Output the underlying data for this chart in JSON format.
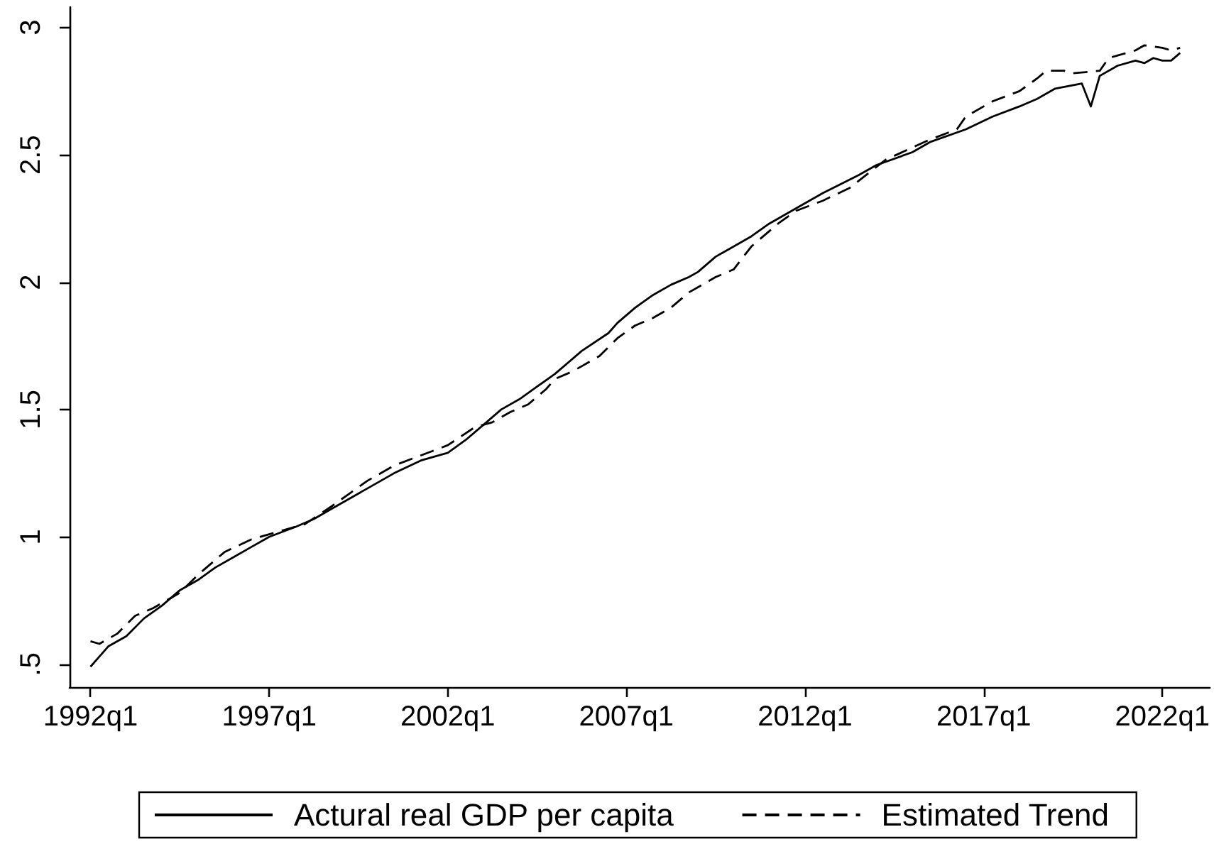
{
  "chart_data": {
    "type": "line",
    "legend": "bottom",
    "grid": false,
    "marker": "none",
    "xlim": [
      "1991-06",
      "2023-05"
    ],
    "xticks": [
      {
        "value": "1992-01",
        "label": "1992q1"
      },
      {
        "value": "1997-01",
        "label": "1997q1"
      },
      {
        "value": "2002-01",
        "label": "2002q1"
      },
      {
        "value": "2007-01",
        "label": "2007q1"
      },
      {
        "value": "2012-01",
        "label": "2012q1"
      },
      {
        "value": "2017-01",
        "label": "2017q1"
      },
      {
        "value": "2022-01",
        "label": "2022q1"
      }
    ],
    "ylim": [
      0.41,
      3.08
    ],
    "yticks": [
      {
        "value": 0.5,
        "label": ".5"
      },
      1,
      1.5,
      2,
      2.5,
      3
    ],
    "series": [
      {
        "name": "Actural real GDP per capita",
        "color": "#000000",
        "line_style": "solid",
        "x": [
          "1992-01",
          "1992-04",
          "1992-07",
          "1993-01",
          "1993-07",
          "1994-01",
          "1994-07",
          "1995-01",
          "1995-07",
          "1996-01",
          "1996-07",
          "1997-01",
          "1997-10",
          "1998-04",
          "1998-10",
          "1999-04",
          "1999-10",
          "2000-07",
          "2001-04",
          "2002-01",
          "2002-07",
          "2003-01",
          "2003-07",
          "2004-01",
          "2004-07",
          "2005-01",
          "2005-10",
          "2006-07",
          "2006-10",
          "2007-04",
          "2007-10",
          "2008-04",
          "2008-10",
          "2009-01",
          "2009-07",
          "2010-01",
          "2010-07",
          "2011-01",
          "2011-10",
          "2012-07",
          "2013-07",
          "2014-01",
          "2015-01",
          "2015-07",
          "2016-07",
          "2017-04",
          "2018-01",
          "2018-07",
          "2019-01",
          "2019-10",
          "2020-01",
          "2020-04",
          "2020-10",
          "2021-04",
          "2021-07",
          "2021-10",
          "2022-01",
          "2022-04",
          "2022-07"
        ],
        "values": [
          0.49,
          0.53,
          0.57,
          0.61,
          0.68,
          0.73,
          0.79,
          0.83,
          0.88,
          0.92,
          0.96,
          1.0,
          1.04,
          1.07,
          1.11,
          1.15,
          1.19,
          1.25,
          1.3,
          1.33,
          1.38,
          1.44,
          1.5,
          1.54,
          1.59,
          1.64,
          1.73,
          1.8,
          1.84,
          1.9,
          1.95,
          1.99,
          2.02,
          2.04,
          2.1,
          2.14,
          2.18,
          2.23,
          2.29,
          2.35,
          2.42,
          2.46,
          2.51,
          2.55,
          2.6,
          2.65,
          2.69,
          2.72,
          2.76,
          2.78,
          2.69,
          2.81,
          2.85,
          2.87,
          2.86,
          2.88,
          2.87,
          2.87,
          2.9
        ]
      },
      {
        "name": "Estimated Trend",
        "color": "#000000",
        "line_style": "dashed",
        "x": [
          "1992-01",
          "1992-04",
          "1992-10",
          "1993-04",
          "1993-10",
          "1994-04",
          "1994-07",
          "1995-01",
          "1995-10",
          "1996-07",
          "1997-04",
          "1998-01",
          "1998-10",
          "1999-04",
          "1999-10",
          "2000-07",
          "2001-04",
          "2002-01",
          "2002-10",
          "2003-04",
          "2003-10",
          "2004-04",
          "2004-10",
          "2005-01",
          "2005-07",
          "2006-04",
          "2006-10",
          "2007-04",
          "2007-10",
          "2008-04",
          "2008-10",
          "2009-07",
          "2010-01",
          "2010-07",
          "2011-04",
          "2011-10",
          "2012-07",
          "2013-04",
          "2014-04",
          "2015-07",
          "2016-04",
          "2016-07",
          "2017-04",
          "2018-01",
          "2018-07",
          "2018-10",
          "2019-04",
          "2019-07",
          "2020-04",
          "2020-07",
          "2020-10",
          "2021-04",
          "2021-07",
          "2022-01",
          "2022-04",
          "2022-07"
        ],
        "values": [
          0.59,
          0.58,
          0.62,
          0.69,
          0.72,
          0.76,
          0.78,
          0.85,
          0.94,
          0.99,
          1.02,
          1.05,
          1.12,
          1.17,
          1.22,
          1.28,
          1.32,
          1.36,
          1.43,
          1.45,
          1.49,
          1.52,
          1.58,
          1.62,
          1.65,
          1.71,
          1.78,
          1.83,
          1.86,
          1.9,
          1.96,
          2.02,
          2.05,
          2.14,
          2.23,
          2.28,
          2.32,
          2.37,
          2.48,
          2.56,
          2.6,
          2.65,
          2.71,
          2.75,
          2.8,
          2.83,
          2.83,
          2.82,
          2.83,
          2.88,
          2.89,
          2.91,
          2.93,
          2.92,
          2.91,
          2.92
        ]
      }
    ]
  }
}
